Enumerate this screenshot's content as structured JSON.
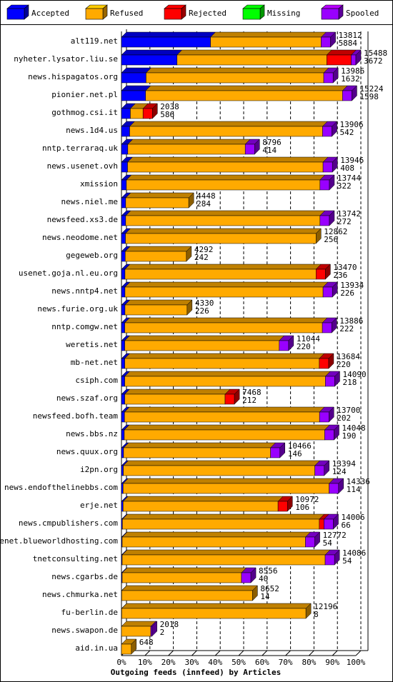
{
  "chart_data": {
    "type": "bar3d_stacked_horizontal",
    "x_label": "Outgoing feeds (innfeed) by Articles",
    "categories": [
      "alt119.net",
      "nyheter.lysator.liu.se",
      "news.hispagatos.org",
      "pionier.net.pl",
      "gothmog.csi.it",
      "news.1d4.us",
      "nntp.terraraq.uk",
      "news.usenet.ovh",
      "xmission",
      "news.niel.me",
      "newsfeed.xs3.de",
      "news.neodome.net",
      "gegeweb.org",
      "usenet.goja.nl.eu.org",
      "news.nntp4.net",
      "news.furie.org.uk",
      "nntp.comgw.net",
      "weretis.net",
      "mb-net.net",
      "csiph.com",
      "news.szaf.org",
      "newsfeed.bofh.team",
      "news.bbs.nz",
      "news.quux.org",
      "i2pn.org",
      "news.endofthelinebbs.com",
      "erje.net",
      "news.cmpublishers.com",
      "usenet.blueworldhosting.com",
      "tnetconsulting.net",
      "news.cgarbs.de",
      "news.chmurka.net",
      "fu-berlin.de",
      "news.swapon.de",
      "aid.in.ua"
    ],
    "series": [
      {
        "name": "Accepted",
        "color": "#0000ff",
        "values": [
          38.0,
          23.7,
          10.5,
          10.3,
          3.8,
          3.5,
          2.7,
          2.6,
          2.1,
          1.8,
          1.8,
          1.7,
          1.6,
          1.5,
          1.5,
          1.5,
          1.4,
          1.4,
          1.4,
          1.4,
          1.4,
          1.3,
          1.2,
          0.9,
          0.8,
          0.7,
          0.7,
          0.4,
          0.3,
          0.3,
          0.3,
          0.1,
          0.1,
          0,
          0
        ]
      },
      {
        "name": "Refused",
        "color": "#ffaa00",
        "values": [
          47.2,
          63.9,
          75.8,
          84.0,
          5.4,
          82.3,
          50.1,
          83.4,
          82.6,
          26.9,
          82.9,
          81.3,
          26.1,
          81.5,
          84.5,
          26.5,
          84.3,
          65.9,
          83.0,
          85.6,
          42.8,
          83.2,
          85.5,
          62.7,
          81.7,
          87.9,
          66.1,
          84.0,
          78.2,
          86.6,
          50.9,
          55.8,
          78.6,
          12.5,
          4.2
        ]
      },
      {
        "name": "Rejected",
        "color": "#ff0000",
        "values": [
          0,
          10.4,
          0,
          0,
          4,
          0,
          0,
          0,
          0,
          0,
          0,
          0,
          0,
          4,
          0,
          0,
          0,
          0,
          4,
          0,
          4,
          0,
          0,
          0,
          0,
          0,
          4,
          2,
          0,
          0,
          0,
          0,
          0,
          0,
          0
        ]
      },
      {
        "name": "Missing",
        "color": "#00ff00",
        "values": [
          0,
          0,
          0,
          0,
          0,
          0,
          0,
          0,
          0,
          0,
          0,
          0,
          0,
          0,
          0,
          0,
          0,
          0,
          0,
          0,
          0,
          0,
          0,
          0,
          0,
          0,
          0,
          0,
          0,
          0,
          0,
          0,
          0,
          0,
          0
        ]
      },
      {
        "name": "Spooled",
        "color": "#9900ff",
        "values": [
          4,
          2,
          4,
          4,
          0,
          4,
          4,
          4,
          4,
          0,
          4,
          0,
          0,
          0,
          4,
          0,
          4,
          4,
          0,
          4,
          0,
          4,
          4,
          4,
          4,
          4,
          0,
          4,
          4,
          4,
          4,
          0,
          0,
          0.5,
          0
        ]
      }
    ],
    "annotations": [
      [
        13812,
        5884
      ],
      [
        15488,
        3672
      ],
      [
        13986,
        1632
      ],
      [
        15224,
        1598
      ],
      [
        2038,
        586
      ],
      [
        13906,
        542
      ],
      [
        8796,
        414
      ],
      [
        13946,
        408
      ],
      [
        13744,
        322
      ],
      [
        4448,
        284
      ],
      [
        13742,
        272
      ],
      [
        12862,
        256
      ],
      [
        4292,
        242
      ],
      [
        13470,
        236
      ],
      [
        13934,
        226
      ],
      [
        4330,
        226
      ],
      [
        13886,
        222
      ],
      [
        11044,
        220
      ],
      [
        13684,
        220
      ],
      [
        14090,
        218
      ],
      [
        7468,
        212
      ],
      [
        13700,
        202
      ],
      [
        14048,
        190
      ],
      [
        10466,
        146
      ],
      [
        13394,
        124
      ],
      [
        14336,
        114
      ],
      [
        10972,
        106
      ],
      [
        14006,
        66
      ],
      [
        12772,
        54
      ],
      [
        14086,
        54
      ],
      [
        8556,
        40
      ],
      [
        8652,
        14
      ],
      [
        12196,
        8
      ],
      [
        2018,
        2
      ],
      [
        648
      ]
    ],
    "xlim": [
      0,
      100
    ],
    "xticks": [
      {
        "value": 0,
        "label": "0%"
      },
      {
        "value": 10,
        "label": "10%"
      },
      {
        "value": 20,
        "label": "20%"
      },
      {
        "value": 30,
        "label": "30%"
      },
      {
        "value": 40,
        "label": "40%"
      },
      {
        "value": 50,
        "label": "50%"
      },
      {
        "value": 60,
        "label": "60%"
      },
      {
        "value": 70,
        "label": "70%"
      },
      {
        "value": 80,
        "label": "80%"
      },
      {
        "value": 90,
        "label": "90%"
      },
      {
        "value": 100,
        "label": "100%"
      }
    ],
    "grid": true
  }
}
